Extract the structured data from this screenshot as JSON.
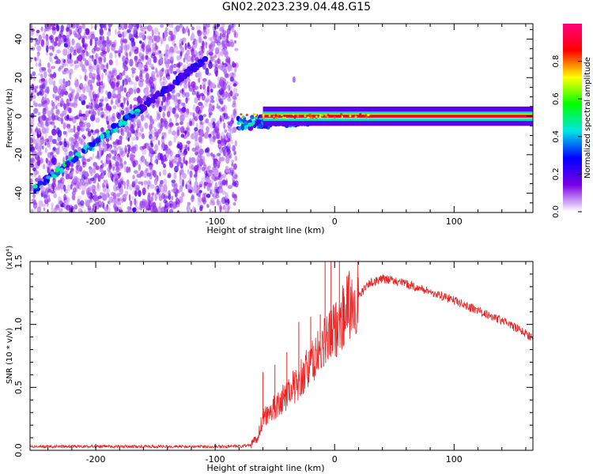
{
  "title": "GN02.2023.239.04.48.G15",
  "chart_data": [
    {
      "type": "heatmap",
      "title": "GN02.2023.239.04.48.G15",
      "xlabel": "Height of straight line (km)",
      "ylabel": "Frequency (Hz)",
      "xlim": [
        -255,
        166
      ],
      "ylim": [
        -50,
        48
      ],
      "xticks": [
        -200,
        -100,
        0,
        100
      ],
      "xtick_labels": [
        "-200",
        "-100",
        "0",
        "100"
      ],
      "yticks": [
        40,
        20,
        0,
        -20,
        -40
      ],
      "ytick_labels": [
        "40",
        "20",
        "0",
        "-20",
        "-40"
      ],
      "colorbar": {
        "label": "Normalized spectral amplitude",
        "range": [
          0,
          1
        ],
        "ticks": [
          0.0,
          0.2,
          0.4,
          0.6,
          0.8
        ],
        "tick_labels": [
          "0.0",
          "0.2",
          "0.4",
          "0.6",
          "0.8"
        ],
        "colormap": [
          "#ffffff",
          "#7a00e6",
          "#0000ff",
          "#00e5e5",
          "#00ff00",
          "#ffff00",
          "#ff0000",
          "#ff007f"
        ]
      },
      "noise_region_x": [
        -255,
        -82
      ],
      "features": [
        {
          "name": "diagonal",
          "x": [
            -252,
            -105
          ],
          "y": [
            -38,
            31
          ],
          "amplitude": 0.35
        },
        {
          "name": "line",
          "x": [
            -82,
            166
          ],
          "y": [
            -4,
            0
          ],
          "amplitude": 0.9
        }
      ]
    },
    {
      "type": "line",
      "xlabel": "Height of straight line (km)",
      "ylabel": "SNR (10 * v/v)",
      "y_multiplier": "(x10⁴)",
      "xlim": [
        -255,
        166
      ],
      "ylim": [
        0,
        1.5
      ],
      "xticks": [
        -200,
        -100,
        0,
        100
      ],
      "xtick_labels": [
        "-200",
        "-100",
        "0",
        "100"
      ],
      "yticks": [
        0.0,
        0.5,
        1.0,
        1.5
      ],
      "ytick_labels": [
        "0.0",
        "0.5",
        "1.0",
        "1.5"
      ],
      "series_color": "#ee2222",
      "series": [
        {
          "x": [
            -255,
            -200,
            -150,
            -100,
            -80,
            -70,
            -65,
            -60,
            -55,
            -50,
            -45,
            -40,
            -35,
            -30,
            -25,
            -20,
            -15,
            -10,
            -5,
            0,
            5,
            10,
            15,
            20,
            25,
            30,
            35,
            40,
            50,
            60,
            80,
            100,
            120,
            140,
            160,
            166
          ],
          "y": [
            0.03,
            0.03,
            0.03,
            0.03,
            0.03,
            0.04,
            0.1,
            0.25,
            0.3,
            0.35,
            0.38,
            0.45,
            0.5,
            0.55,
            0.62,
            0.68,
            0.75,
            0.82,
            0.9,
            0.95,
            1.05,
            1.12,
            1.18,
            1.22,
            1.28,
            1.33,
            1.35,
            1.36,
            1.35,
            1.32,
            1.26,
            1.19,
            1.11,
            1.03,
            0.93,
            0.89
          ]
        }
      ],
      "spikes": [
        {
          "x": -8,
          "y": 1.5
        },
        {
          "x": -3,
          "y": 1.5
        },
        {
          "x": 4,
          "y": 1.52
        },
        {
          "x": -12,
          "y": 1.08
        },
        {
          "x": -20,
          "y": 1.06
        },
        {
          "x": -30,
          "y": 1.02
        },
        {
          "x": -40,
          "y": 0.78
        },
        {
          "x": -50,
          "y": 0.68
        },
        {
          "x": -60,
          "y": 0.62
        }
      ]
    }
  ]
}
